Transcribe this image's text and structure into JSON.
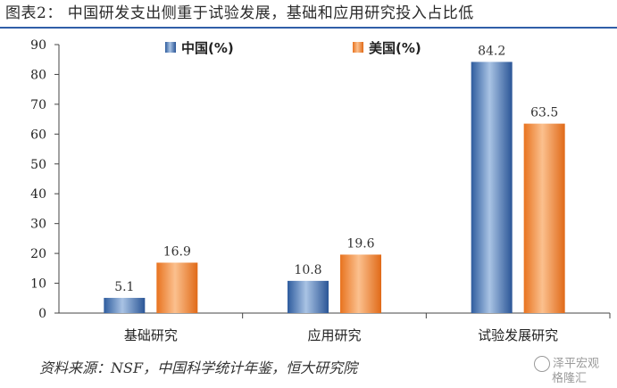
{
  "title": "图表2：  中国研发支出侧重于试验发展，基础和应用研究投入占比低",
  "source": "资料来源：NSF，中国科学统计年鉴，恒大研究院",
  "watermark": {
    "line1": "泽平宏观",
    "line2": "格隆汇"
  },
  "colors": {
    "title_rule": "#2f5ea8",
    "china": "#3f6fb4",
    "usa": "#f0883a"
  },
  "chart_data": {
    "type": "bar",
    "categories": [
      "基础研究",
      "应用研究",
      "试验发展研究"
    ],
    "series": [
      {
        "name": "中国(%)",
        "values": [
          5.1,
          10.8,
          84.2
        ],
        "color": "#3f6fb4"
      },
      {
        "name": "美国(%)",
        "values": [
          16.9,
          19.6,
          63.5
        ],
        "color": "#f0883a"
      }
    ],
    "ylim": [
      0,
      90
    ],
    "yticks": [
      0,
      10,
      20,
      30,
      40,
      50,
      60,
      70,
      80,
      90
    ],
    "grid": false,
    "legend_position": "top"
  }
}
